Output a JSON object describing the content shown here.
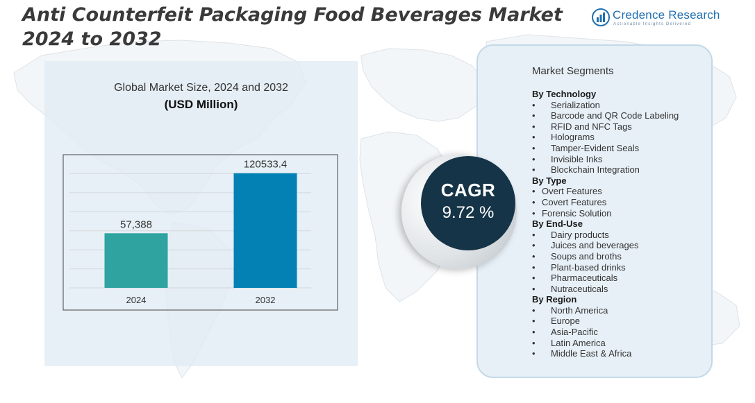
{
  "title": {
    "line1": "Anti Counterfeit Packaging Food Beverages Market",
    "line2": "2024 to 2032"
  },
  "logo": {
    "name": "Credence Research",
    "tagline": "Actionable Insights Delivered",
    "icon": "bar-chart-logo-icon"
  },
  "chart_data": {
    "type": "bar",
    "title": "Global Market Size, 2024 and 2032",
    "subtitle": "(USD Million)",
    "categories": [
      "2024",
      "2032"
    ],
    "values": [
      57388,
      120533.4
    ],
    "value_labels": [
      "57,388",
      "120533.4"
    ],
    "bar_colors": [
      "#2ea39f",
      "#0381b5"
    ],
    "grid": true,
    "ylim": [
      0,
      140000
    ],
    "xlabel": "",
    "ylabel": ""
  },
  "segments": {
    "heading": "Market Segments",
    "groups": [
      {
        "title": "By Technology",
        "items": [
          "Serialization",
          "Barcode and QR Code Labeling",
          "RFID and NFC Tags",
          "Holograms",
          "Tamper-Evident Seals",
          "Invisible Inks",
          "Blockchain Integration"
        ]
      },
      {
        "title": "By Type",
        "items": [
          "Overt Features",
          "Covert Features",
          "Forensic Solution"
        ]
      },
      {
        "title": "By End-Use",
        "items": [
          " Dairy products",
          "Juices and beverages",
          "Soups and broths",
          "Plant-based drinks",
          "Pharmaceuticals",
          "Nutraceuticals"
        ]
      },
      {
        "title": "By Region",
        "items": [
          "North America",
          "Europe",
          "Asia-Pacific",
          "Latin America",
          "Middle East & Africa"
        ]
      }
    ]
  },
  "cagr": {
    "label": "CAGR",
    "value": "9.72 %"
  },
  "colors": {
    "cagr_circle": "#163447",
    "bar_2024": "#2ea39f",
    "bar_2032": "#0381b5",
    "logo_blue": "#1f6fb0"
  }
}
